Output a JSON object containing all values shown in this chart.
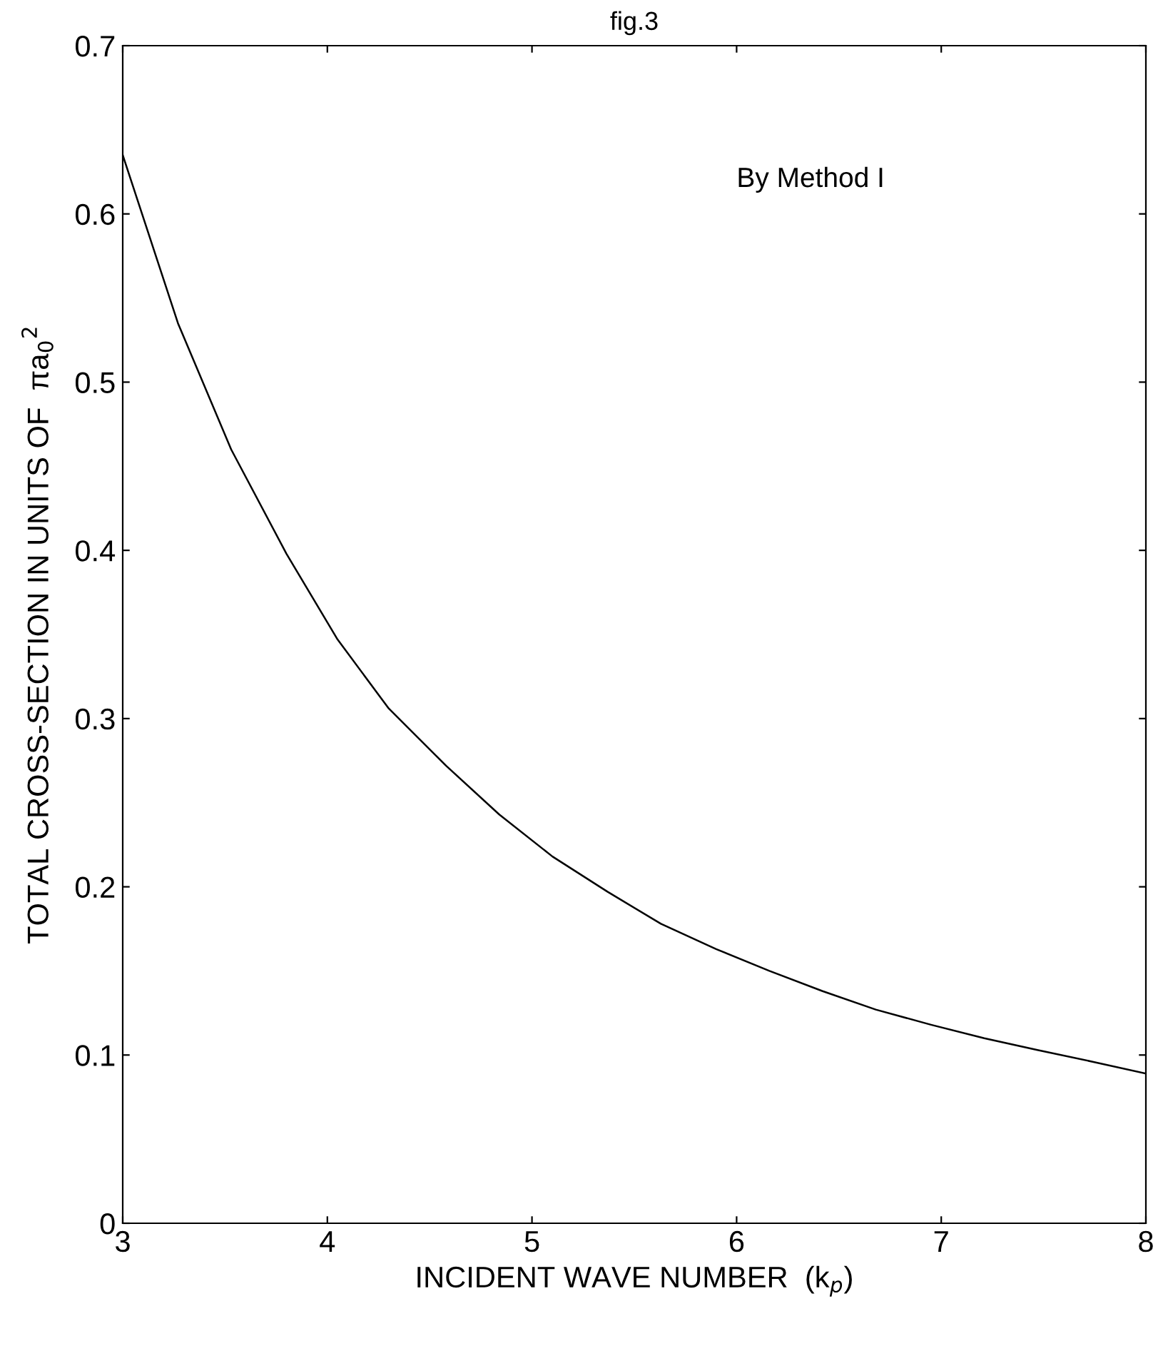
{
  "chart_data": {
    "type": "line",
    "title": "fig.3",
    "xlabel": "INCIDENT WAVE NUMBER  (k$_{p}$)",
    "ylabel": "TOTAL CROSS-SECTION IN UNITS OF  πa$_{0}$$^{2}$",
    "annotations": [
      "By Method I"
    ],
    "x": [
      3,
      3.27,
      3.53,
      3.8,
      4.05,
      4.3,
      4.58,
      4.84,
      5.1,
      5.37,
      5.63,
      5.9,
      6.16,
      6.42,
      6.68,
      6.95,
      7.21,
      7.47,
      7.74,
      8
    ],
    "series": [
      {
        "color": "#000000",
        "values": [
          0.635,
          0.535,
          0.46,
          0.398,
          0.347,
          0.306,
          0.272,
          0.243,
          0.218,
          0.197,
          0.178,
          0.163,
          0.15,
          0.138,
          0.127,
          0.118,
          0.11,
          0.103,
          0.096,
          0.089
        ]
      }
    ],
    "xlim": [
      3,
      8
    ],
    "ylim": [
      0,
      0.7
    ],
    "xticks": [
      3,
      4,
      5,
      6,
      7,
      8
    ],
    "yticks": [
      0,
      0.1,
      0.2,
      0.3,
      0.4,
      0.5,
      0.6,
      0.7
    ],
    "grid": false,
    "legend": false
  }
}
